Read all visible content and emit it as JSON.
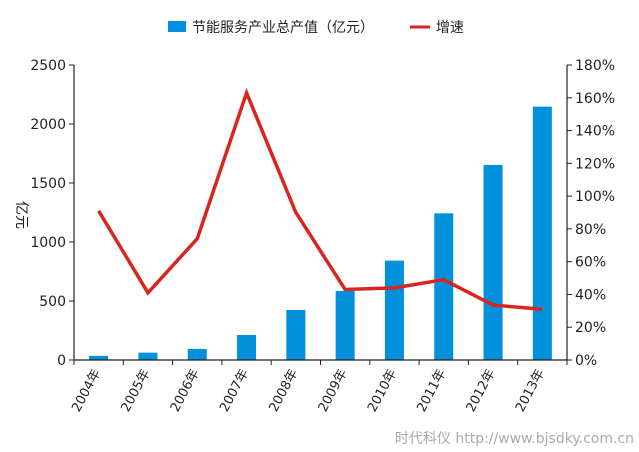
{
  "chart_data": {
    "type": "bar+line",
    "categories": [
      "2004年",
      "2005年",
      "2006年",
      "2007年",
      "2008年",
      "2009年",
      "2010年",
      "2011年",
      "2012年",
      "2013年"
    ],
    "series": [
      {
        "name": "节能服务产业总产值（亿元）",
        "type": "bar",
        "axis": "left",
        "color": "#0090dc",
        "values": [
          35,
          62,
          93,
          212,
          424,
          585,
          842,
          1243,
          1653,
          2147
        ]
      },
      {
        "name": "增速",
        "type": "line",
        "axis": "right",
        "color": "#d9251d",
        "values": [
          91,
          41,
          74,
          163,
          90,
          43,
          44,
          49,
          33.5,
          31
        ]
      }
    ],
    "ylabel": "亿元",
    "ylim": [
      0,
      2500
    ],
    "yticks": [
      "0",
      "500",
      "1000",
      "1500",
      "2000",
      "2500"
    ],
    "y2lim": [
      0,
      180
    ],
    "y2ticks": [
      "0%",
      "20%",
      "40%",
      "60%",
      "80%",
      "100%",
      "120%",
      "140%",
      "160%",
      "180%"
    ],
    "grid": false,
    "legend": "top"
  },
  "watermark": "时代科仪 http://www.bjsdky.com.cn"
}
